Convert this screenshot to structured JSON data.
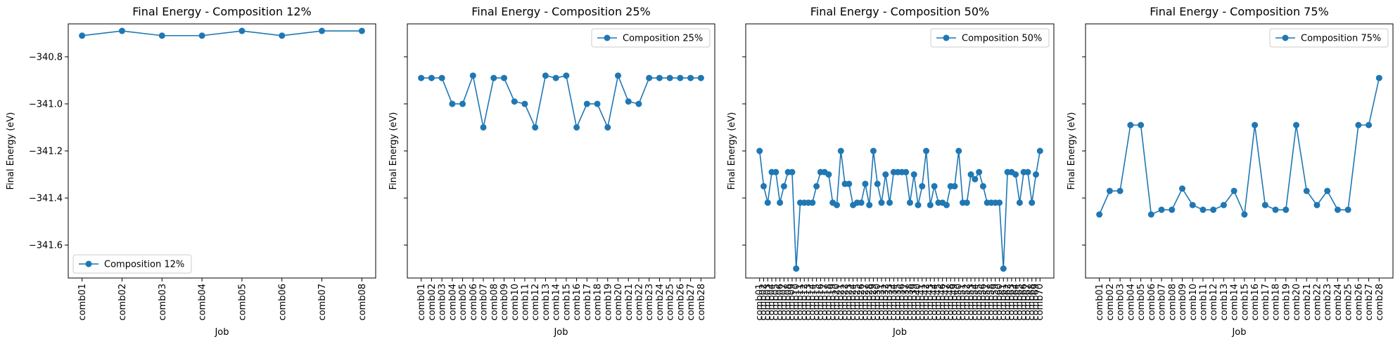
{
  "chart_data": [
    {
      "type": "line",
      "title": "Final Energy - Composition 12%",
      "xlabel": "Job",
      "ylabel": "Final Energy (eV)",
      "ylim": [
        -341.74,
        -340.66
      ],
      "yticks": [
        -341.6,
        -341.4,
        -341.2,
        -341.0,
        -340.8
      ],
      "grid": false,
      "legend": "lower-left",
      "color": "#1f77b4",
      "series": [
        {
          "name": "Composition 12%",
          "categories": [
            "comb01",
            "comb02",
            "comb03",
            "comb04",
            "comb05",
            "comb06",
            "comb07",
            "comb08"
          ],
          "values": [
            -340.71,
            -340.69,
            -340.71,
            -340.71,
            -340.69,
            -340.71,
            -340.69,
            -340.69
          ]
        }
      ]
    },
    {
      "type": "line",
      "title": "Final Energy - Composition 25%",
      "xlabel": "Job",
      "ylabel": "Final Energy (eV)",
      "ylim": [
        -341.74,
        -340.66
      ],
      "yticks": [
        -341.6,
        -341.4,
        -341.2,
        -341.0,
        -340.8
      ],
      "grid": false,
      "legend": "upper-right",
      "color": "#1f77b4",
      "series": [
        {
          "name": "Composition 25%",
          "categories": [
            "comb01",
            "comb02",
            "comb03",
            "comb04",
            "comb05",
            "comb06",
            "comb07",
            "comb08",
            "comb09",
            "comb10",
            "comb11",
            "comb12",
            "comb13",
            "comb14",
            "comb15",
            "comb16",
            "comb17",
            "comb18",
            "comb19",
            "comb20",
            "comb21",
            "comb22",
            "comb23",
            "comb24",
            "comb25",
            "comb26",
            "comb27",
            "comb28"
          ],
          "values": [
            -340.89,
            -340.89,
            -340.89,
            -341.0,
            -341.0,
            -340.88,
            -341.1,
            -340.89,
            -340.89,
            -340.99,
            -341.0,
            -341.1,
            -340.88,
            -340.89,
            -340.88,
            -341.1,
            -341.0,
            -341.0,
            -341.1,
            -340.88,
            -340.99,
            -341.0,
            -340.89,
            -340.89,
            -340.89,
            -340.89,
            -340.89,
            -340.89
          ]
        }
      ]
    },
    {
      "type": "line",
      "title": "Final Energy - Composition 50%",
      "xlabel": "Job",
      "ylabel": "Final Energy (eV)",
      "ylim": [
        -341.74,
        -340.66
      ],
      "yticks": [
        -341.6,
        -341.4,
        -341.2,
        -341.0,
        -340.8
      ],
      "grid": false,
      "legend": "upper-right",
      "color": "#1f77b4",
      "series": [
        {
          "name": "Composition 50%",
          "categories": [
            "comb01",
            "comb02",
            "comb03",
            "comb04",
            "comb05",
            "comb06",
            "comb07",
            "comb08",
            "comb09",
            "comb10",
            "comb11",
            "comb12",
            "comb13",
            "comb14",
            "comb15",
            "comb16",
            "comb17",
            "comb18",
            "comb19",
            "comb20",
            "comb21",
            "comb22",
            "comb23",
            "comb24",
            "comb25",
            "comb26",
            "comb27",
            "comb28",
            "comb29",
            "comb30",
            "comb31",
            "comb32",
            "comb33",
            "comb34",
            "comb35",
            "comb36",
            "comb37",
            "comb38",
            "comb39",
            "comb40",
            "comb41",
            "comb42",
            "comb43",
            "comb44",
            "comb45",
            "comb46",
            "comb47",
            "comb48",
            "comb49",
            "comb50",
            "comb51",
            "comb52",
            "comb53",
            "comb54",
            "comb55",
            "comb56",
            "comb57",
            "comb58",
            "comb59",
            "comb60",
            "comb61",
            "comb62",
            "comb63",
            "comb64",
            "comb65",
            "comb66",
            "comb67",
            "comb68",
            "comb69",
            "comb70"
          ],
          "values": [
            -341.2,
            -341.35,
            -341.42,
            -341.29,
            -341.29,
            -341.42,
            -341.35,
            -341.29,
            -341.29,
            -341.7,
            -341.42,
            -341.42,
            -341.42,
            -341.42,
            -341.35,
            -341.29,
            -341.29,
            -341.3,
            -341.42,
            -341.43,
            -341.2,
            -341.34,
            -341.34,
            -341.43,
            -341.42,
            -341.42,
            -341.34,
            -341.43,
            -341.2,
            -341.34,
            -341.42,
            -341.3,
            -341.42,
            -341.29,
            -341.29,
            -341.29,
            -341.29,
            -341.42,
            -341.3,
            -341.43,
            -341.35,
            -341.2,
            -341.43,
            -341.35,
            -341.42,
            -341.42,
            -341.43,
            -341.35,
            -341.35,
            -341.2,
            -341.42,
            -341.42,
            -341.3,
            -341.32,
            -341.29,
            -341.35,
            -341.42,
            -341.42,
            -341.42,
            -341.42,
            -341.7,
            -341.29,
            -341.29,
            -341.3,
            -341.42,
            -341.29,
            -341.29,
            -341.42,
            -341.3,
            -341.2
          ]
        }
      ]
    },
    {
      "type": "line",
      "title": "Final Energy - Composition 75%",
      "xlabel": "Job",
      "ylabel": "Final Energy (eV)",
      "ylim": [
        -341.74,
        -340.66
      ],
      "yticks": [
        -341.6,
        -341.4,
        -341.2,
        -341.0,
        -340.8
      ],
      "grid": false,
      "legend": "upper-right",
      "color": "#1f77b4",
      "series": [
        {
          "name": "Composition 75%",
          "categories": [
            "comb01",
            "comb02",
            "comb03",
            "comb04",
            "comb05",
            "comb06",
            "comb07",
            "comb08",
            "comb09",
            "comb10",
            "comb11",
            "comb12",
            "comb13",
            "comb14",
            "comb15",
            "comb16",
            "comb17",
            "comb18",
            "comb19",
            "comb20",
            "comb21",
            "comb22",
            "comb23",
            "comb24",
            "comb25",
            "comb26",
            "comb27",
            "comb28"
          ],
          "values": [
            -341.47,
            -341.37,
            -341.37,
            -341.09,
            -341.09,
            -341.47,
            -341.45,
            -341.45,
            -341.36,
            -341.43,
            -341.45,
            -341.45,
            -341.43,
            -341.37,
            -341.47,
            -341.09,
            -341.43,
            -341.45,
            -341.45,
            -341.09,
            -341.37,
            -341.43,
            -341.37,
            -341.45,
            -341.45,
            -341.09,
            -341.09,
            -340.89
          ]
        }
      ]
    }
  ]
}
